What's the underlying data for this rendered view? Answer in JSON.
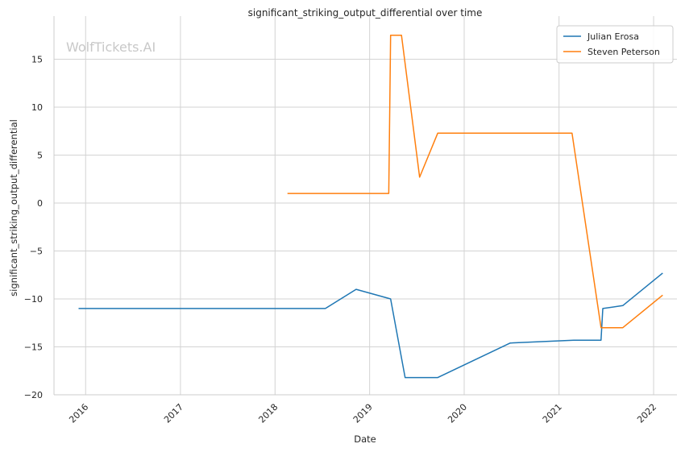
{
  "chart_data": {
    "type": "line",
    "title": "significant_striking_output_differential over time",
    "xlabel": "Date",
    "ylabel": "significant_striking_output_differential",
    "watermark": "WolfTickets.AI",
    "xlim": [
      "2015-09-01",
      "2022-04-01"
    ],
    "ylim": [
      -20,
      19.5
    ],
    "x_ticks": [
      "2016-01-01",
      "2017-01-01",
      "2018-01-01",
      "2019-01-01",
      "2020-01-01",
      "2021-01-01",
      "2022-01-01"
    ],
    "x_tick_labels": [
      "2016",
      "2017",
      "2018",
      "2019",
      "2020",
      "2021",
      "2022"
    ],
    "y_ticks": [
      -20,
      -15,
      -10,
      -5,
      0,
      5,
      10,
      15
    ],
    "y_tick_labels": [
      "−20",
      "−15",
      "−10",
      "−5",
      "0",
      "5",
      "10",
      "15"
    ],
    "grid": true,
    "legend_position": "top-right",
    "series": [
      {
        "name": "Julian Erosa",
        "color": "#1f77b4",
        "x": [
          "2015-12-05",
          "2018-07-14",
          "2018-11-10",
          "2019-03-23",
          "2019-05-18",
          "2019-09-21",
          "2020-06-27",
          "2021-02-27",
          "2021-06-12",
          "2021-06-19",
          "2021-09-04",
          "2022-02-05"
        ],
        "y": [
          -11.0,
          -11.0,
          -9.0,
          -10.0,
          -18.2,
          -18.2,
          -14.6,
          -14.3,
          -14.3,
          -11.0,
          -10.7,
          -7.3
        ]
      },
      {
        "name": "Steven Peterson",
        "color": "#ff7f0e",
        "x": [
          "2018-02-18",
          "2019-03-16",
          "2019-03-23",
          "2019-05-04",
          "2019-07-13",
          "2019-09-21",
          "2021-02-20",
          "2021-06-12",
          "2021-09-04",
          "2022-02-05"
        ],
        "y": [
          1.0,
          1.0,
          17.5,
          17.5,
          2.7,
          7.3,
          7.3,
          -13.0,
          -13.0,
          -9.6
        ]
      }
    ]
  }
}
